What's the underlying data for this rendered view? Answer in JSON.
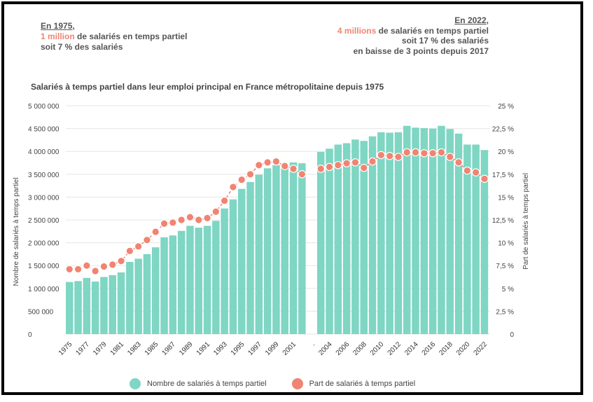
{
  "annotations": {
    "left": {
      "heading": "En 1975",
      "heading_suffix": ",",
      "highlight": "1 million",
      "line1_rest": " de salariés en temps partiel",
      "line2": "soit 7 % des salariés"
    },
    "right": {
      "heading": "En 2022",
      "heading_suffix": ",",
      "highlight": "4 millions",
      "line1_rest": " de salariés en temps partiel",
      "line2": "soit 17 % des salariés",
      "line3": "en baisse de 3 points depuis 2017"
    }
  },
  "chart_data": {
    "type": "bar",
    "title": "Salariés à temps partiel dans leur emploi principal en France métropolitaine depuis 1975",
    "ylabel_left": "Nombre de salariés à temps partiel",
    "ylabel_right": "Part de salariés à temps partiel",
    "ylim_left": [
      0,
      5000000
    ],
    "ylim_right": [
      0,
      25
    ],
    "left_ticks": [
      "0",
      "500 000",
      "1 000 000",
      "1 500 000",
      "2 000 000",
      "2 500 000",
      "3 000 000",
      "3 500 000",
      "4 000 000",
      "4 500 000",
      "5 000 000"
    ],
    "right_ticks": [
      "0",
      "2,5 %",
      "5 %",
      "7,5 %",
      "10 %",
      "12,5 %",
      "15 %",
      "17,5 %",
      "20 %",
      "22,5 %",
      "25 %"
    ],
    "grid": true,
    "legend_position": "bottom",
    "colors": {
      "bars": "#7ed6c3",
      "dots": "#f08472",
      "line": "#f08472",
      "grid": "#e6e6e6"
    },
    "x_tick_labels": [
      "1975",
      "1977",
      "1979",
      "1981",
      "1983",
      "1985",
      "1987",
      "1989",
      "1991",
      "1993",
      "1995",
      "1997",
      "1999",
      "2001",
      ".",
      "2004",
      "2006",
      "2008",
      "2010",
      "2012",
      "2014",
      "2016",
      "2018",
      "2020",
      "2022"
    ],
    "segments": [
      {
        "years": [
          1975,
          1976,
          1977,
          1978,
          1979,
          1980,
          1981,
          1982,
          1983,
          1984,
          1985,
          1986,
          1987,
          1988,
          1989,
          1990,
          1991,
          1992,
          1993,
          1994,
          1995,
          1996,
          1997,
          1998,
          1999,
          2000,
          2001,
          2002
        ],
        "values": [
          1140000,
          1160000,
          1230000,
          1150000,
          1250000,
          1290000,
          1350000,
          1580000,
          1650000,
          1750000,
          1900000,
          2120000,
          2160000,
          2260000,
          2370000,
          2330000,
          2370000,
          2480000,
          2750000,
          2950000,
          3180000,
          3330000,
          3490000,
          3630000,
          3700000,
          3660000,
          3760000,
          3740000
        ],
        "share": [
          7.1,
          7.1,
          7.5,
          6.9,
          7.4,
          7.6,
          8.0,
          9.1,
          9.6,
          10.3,
          11.2,
          12.1,
          12.2,
          12.5,
          12.8,
          12.5,
          12.7,
          13.4,
          14.6,
          16.1,
          16.9,
          17.5,
          18.5,
          18.8,
          18.9,
          18.4,
          18.1,
          17.5
        ]
      },
      {
        "years": [
          2003,
          2004,
          2005,
          2006,
          2007,
          2008,
          2009,
          2010,
          2011,
          2012,
          2013,
          2014,
          2015,
          2016,
          2017,
          2018,
          2019,
          2020,
          2021,
          2022
        ],
        "values": [
          3990000,
          4060000,
          4150000,
          4180000,
          4260000,
          4230000,
          4330000,
          4420000,
          4410000,
          4420000,
          4560000,
          4520000,
          4510000,
          4500000,
          4560000,
          4490000,
          4390000,
          4150000,
          4150000,
          4030000
        ],
        "share": [
          18.1,
          18.3,
          18.5,
          18.7,
          18.8,
          18.2,
          18.9,
          19.6,
          19.5,
          19.4,
          19.9,
          19.9,
          19.8,
          19.8,
          19.9,
          19.4,
          18.8,
          17.9,
          17.7,
          17.0
        ]
      }
    ]
  },
  "legend": {
    "bars_label": "Nombre de salariés à temps partiel",
    "dots_label": "Part de salariés à temps partiel"
  }
}
